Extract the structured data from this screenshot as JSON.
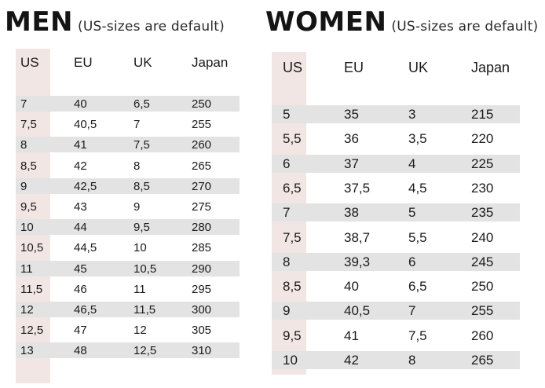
{
  "men": {
    "title": "MEN",
    "note": "(US-sizes are default)",
    "headers": [
      "US",
      "EU",
      "UK",
      "Japan"
    ],
    "rows": [
      [
        "7",
        "40",
        "6,5",
        "250"
      ],
      [
        "7,5",
        "40,5",
        "7",
        "255"
      ],
      [
        "8",
        "41",
        "7,5",
        "260"
      ],
      [
        "8,5",
        "42",
        "8",
        "265"
      ],
      [
        "9",
        "42,5",
        "8,5",
        "270"
      ],
      [
        "9,5",
        "43",
        "9",
        "275"
      ],
      [
        "10",
        "44",
        "9,5",
        "280"
      ],
      [
        "10,5",
        "44,5",
        "10",
        "285"
      ],
      [
        "11",
        "45",
        "10,5",
        "290"
      ],
      [
        "11,5",
        "46",
        "11",
        "295"
      ],
      [
        "12",
        "46,5",
        "11,5",
        "300"
      ],
      [
        "12,5",
        "47",
        "12",
        "305"
      ],
      [
        "13",
        "48",
        "12,5",
        "310"
      ]
    ]
  },
  "women": {
    "title": "WOMEN",
    "note": "(US-sizes are default)",
    "headers": [
      "US",
      "EU",
      "UK",
      "Japan"
    ],
    "rows": [
      [
        "5",
        "35",
        "3",
        "215"
      ],
      [
        "5,5",
        "36",
        "3,5",
        "220"
      ],
      [
        "6",
        "37",
        "4",
        "225"
      ],
      [
        "6,5",
        "37,5",
        "4,5",
        "230"
      ],
      [
        "7",
        "38",
        "5",
        "235"
      ],
      [
        "7,5",
        "38,7",
        "5,5",
        "240"
      ],
      [
        "8",
        "39,3",
        "6",
        "245"
      ],
      [
        "8,5",
        "40",
        "6,5",
        "250"
      ],
      [
        "9",
        "40,5",
        "7",
        "255"
      ],
      [
        "9,5",
        "41",
        "7,5",
        "260"
      ],
      [
        "10",
        "42",
        "8",
        "265"
      ]
    ]
  }
}
